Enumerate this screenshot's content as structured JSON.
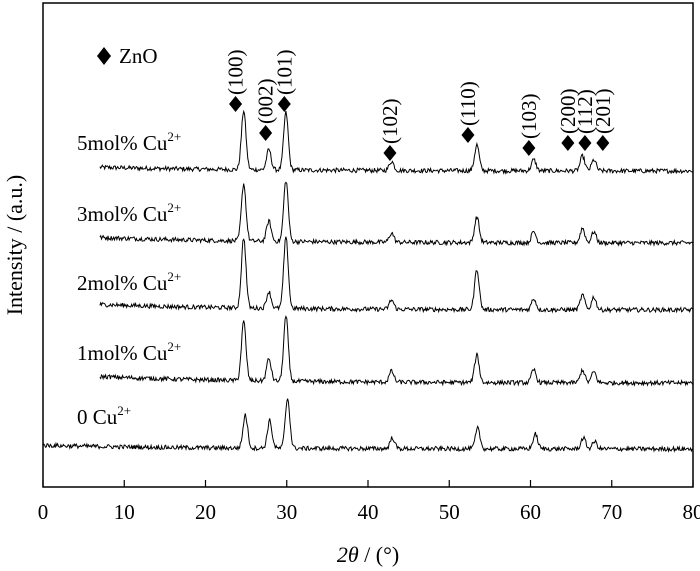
{
  "chart_data": {
    "type": "line",
    "xlabel_italic": "2θ",
    "xlabel_rest": " / (°)",
    "ylabel": "Intensity / (a.u.)",
    "xlim": [
      0,
      80
    ],
    "x_ticks": [
      "0",
      "10",
      "20",
      "30",
      "40",
      "50",
      "60",
      "70",
      "80"
    ],
    "x_tick_values": [
      0,
      10,
      20,
      30,
      40,
      50,
      60,
      70,
      80
    ],
    "grid": false,
    "legend": {
      "marker": "diamond",
      "label": "ZnO",
      "position": "top-left"
    },
    "series": [
      {
        "name": "5mol% Cu",
        "name_sup": "2+",
        "baseline": 0.2,
        "start": 7,
        "end": 80,
        "peaks": [
          [
            24.7,
            1.6
          ],
          [
            27.8,
            0.55
          ],
          [
            29.9,
            1.55
          ],
          [
            42.9,
            0.25
          ],
          [
            53.4,
            0.7
          ],
          [
            60.4,
            0.3
          ],
          [
            66.4,
            0.4
          ],
          [
            67.8,
            0.3
          ]
        ]
      },
      {
        "name": "3mol% Cu",
        "name_sup": "2+",
        "baseline": 0.3,
        "start": 7,
        "end": 80,
        "peaks": [
          [
            24.7,
            1.55
          ],
          [
            27.8,
            0.55
          ],
          [
            29.9,
            1.65
          ],
          [
            42.9,
            0.25
          ],
          [
            53.4,
            0.7
          ],
          [
            60.4,
            0.3
          ],
          [
            66.4,
            0.4
          ],
          [
            67.8,
            0.3
          ]
        ]
      },
      {
        "name": "2mol% Cu",
        "name_sup": "2+",
        "baseline": 0.3,
        "start": 7,
        "end": 80,
        "peaks": [
          [
            24.7,
            1.9
          ],
          [
            27.8,
            0.45
          ],
          [
            29.9,
            1.9
          ],
          [
            42.9,
            0.25
          ],
          [
            53.4,
            1.1
          ],
          [
            60.4,
            0.3
          ],
          [
            66.4,
            0.4
          ],
          [
            67.8,
            0.35
          ]
        ]
      },
      {
        "name": "1mol% Cu",
        "name_sup": "2+",
        "baseline": 0.35,
        "start": 7,
        "end": 80,
        "peaks": [
          [
            24.7,
            1.6
          ],
          [
            27.8,
            0.6
          ],
          [
            29.9,
            1.75
          ],
          [
            42.9,
            0.3
          ],
          [
            53.4,
            0.75
          ],
          [
            60.4,
            0.35
          ],
          [
            66.4,
            0.35
          ],
          [
            67.8,
            0.3
          ]
        ]
      },
      {
        "name": "0 Cu",
        "name_sup": "2+",
        "baseline": 0.2,
        "start": 0,
        "end": 80,
        "peaks": [
          [
            24.9,
            0.9
          ],
          [
            27.9,
            0.75
          ],
          [
            30.1,
            1.35
          ],
          [
            43.0,
            0.3
          ],
          [
            53.5,
            0.55
          ],
          [
            60.6,
            0.4
          ],
          [
            66.5,
            0.3
          ],
          [
            67.9,
            0.2
          ]
        ]
      }
    ],
    "annotations": [
      {
        "label": "(100)",
        "x": 23.7
      },
      {
        "label": "(002)",
        "x": 27.4
      },
      {
        "label": "(101)",
        "x": 29.7
      },
      {
        "label": "(102)",
        "x": 42.7
      },
      {
        "label": "(110)",
        "x": 52.3
      },
      {
        "label": "(103)",
        "x": 59.8
      },
      {
        "label": "(200)",
        "x": 64.6
      },
      {
        "label": "(112)",
        "x": 66.7
      },
      {
        "label": "(201)",
        "x": 68.9
      }
    ]
  }
}
